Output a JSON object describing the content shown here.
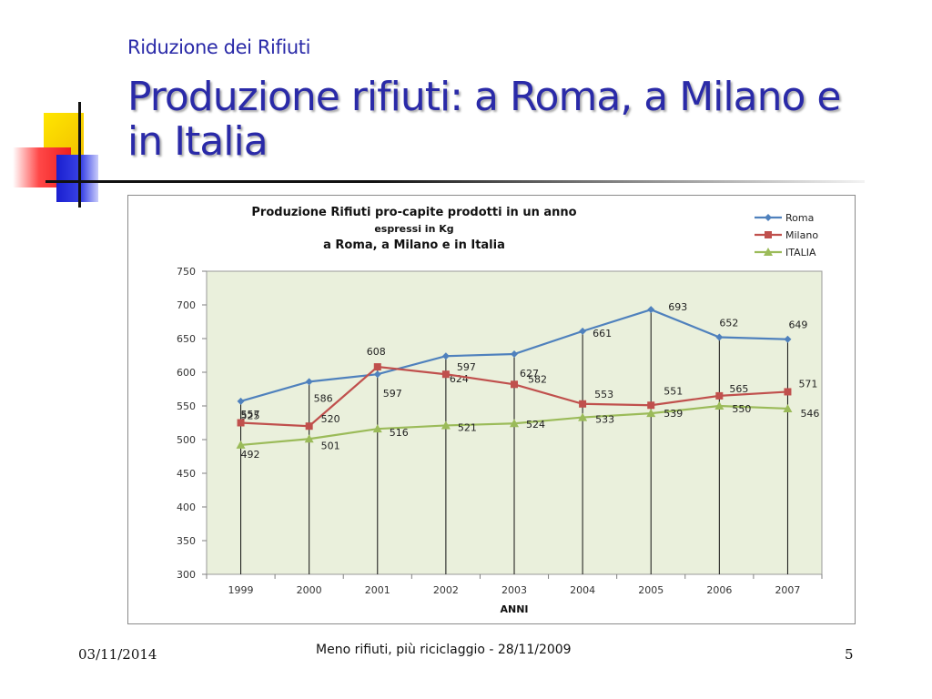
{
  "slide": {
    "subtitle": "Riduzione dei Rifiuti",
    "title": "Produzione rifiuti: a Roma, a Milano e in Italia",
    "footer_date": "03/11/2014",
    "footer_center": "Meno rifiuti, più riciclaggio  - 28/11/2009",
    "page_number": "5"
  },
  "chart_data": {
    "type": "line",
    "title_lines": [
      "Produzione Rifiuti pro-capite prodotti in un anno",
      "espressi in Kg",
      "a Roma, a Milano e in Italia"
    ],
    "xlabel": "ANNI",
    "ylabel": "",
    "categories": [
      "1999",
      "2000",
      "2001",
      "2002",
      "2003",
      "2004",
      "2005",
      "2006",
      "2007"
    ],
    "ylim": [
      300,
      750
    ],
    "yticks": [
      300,
      350,
      400,
      450,
      500,
      550,
      600,
      650,
      700,
      750
    ],
    "grid": false,
    "drop_lines": true,
    "plot_background": "#eaf0dc",
    "legend_position": "top-right",
    "series": [
      {
        "name": "Roma",
        "color": "#4f81bd",
        "marker": "diamond",
        "values": [
          557,
          586,
          597,
          624,
          627,
          661,
          693,
          652,
          649
        ]
      },
      {
        "name": "Milano",
        "color": "#c0504d",
        "marker": "square",
        "values": [
          525,
          520,
          608,
          597,
          582,
          553,
          551,
          565,
          571
        ]
      },
      {
        "name": "ITALIA",
        "color": "#9bbb59",
        "marker": "triangle",
        "values": [
          492,
          501,
          516,
          521,
          524,
          533,
          539,
          550,
          546
        ]
      }
    ]
  }
}
